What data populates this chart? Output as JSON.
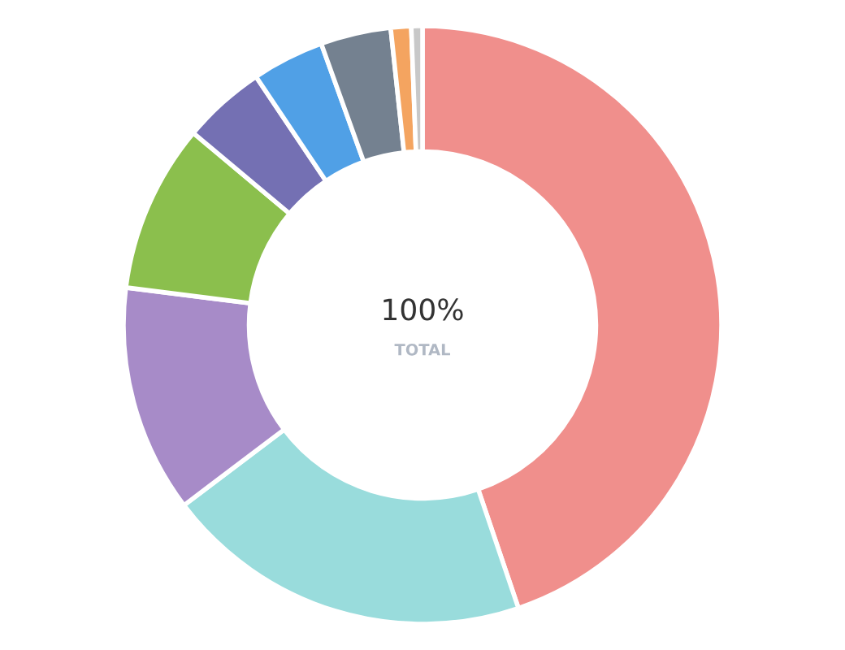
{
  "chart_data": {
    "type": "donut",
    "categories": [
      null,
      null,
      null,
      null,
      null,
      null,
      null,
      null,
      null
    ],
    "values": [
      44.8,
      19.9,
      12.3,
      9.1,
      4.5,
      3.9,
      3.8,
      1.1,
      0.6
    ],
    "colors": [
      "#f08f8c",
      "#99dcdc",
      "#a78bc8",
      "#8bbf4d",
      "#7470b3",
      "#50a0e6",
      "#748190",
      "#f4a460",
      "#c8c8c8"
    ],
    "annotations": [
      "100%",
      "TOTAL"
    ],
    "legend": false
  }
}
